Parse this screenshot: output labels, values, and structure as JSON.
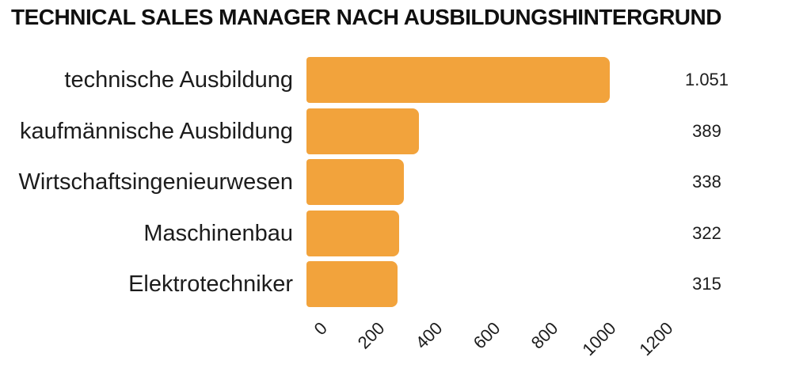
{
  "chart_data": {
    "type": "bar",
    "orientation": "horizontal",
    "title": "TECHNICAL SALES MANAGER NACH AUSBILDUNGSHINTERGRUND",
    "categories": [
      "technische Ausbildung",
      "kaufmännische Ausbildung",
      "Wirtschaftsingenieurwesen",
      "Maschinenbau",
      "Elektrotechniker"
    ],
    "values": [
      1051,
      389,
      338,
      322,
      315
    ],
    "value_labels": [
      "1.051",
      "389",
      "338",
      "322",
      "315"
    ],
    "x_ticks": [
      "0",
      "200",
      "400",
      "600",
      "800",
      "1000",
      "1200"
    ],
    "x_tick_values": [
      0,
      200,
      400,
      600,
      800,
      1000,
      1200
    ],
    "xlim": [
      0,
      1200
    ],
    "xlabel": "",
    "ylabel": "",
    "legend": "none",
    "grid": false,
    "colors": {
      "bar": "#F2A33C",
      "title_text": "#101010",
      "label_text": "#1C1C1C",
      "background": "#FFFFFF"
    }
  }
}
